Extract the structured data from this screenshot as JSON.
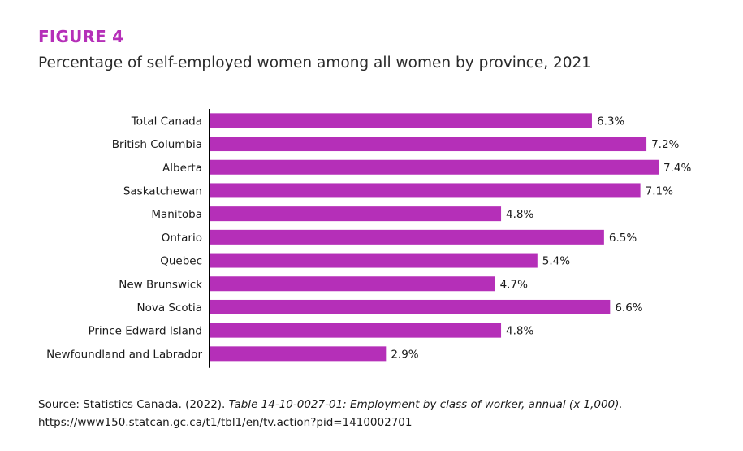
{
  "figure": {
    "label": "FIGURE 4",
    "title": "Percentage of self-employed women among all women by province, 2021"
  },
  "colors": {
    "bar": "#b52fb8",
    "figure_label": "#b52fb8",
    "text": "#1a1a1a",
    "axis": "#000000"
  },
  "chart_data": {
    "type": "bar",
    "orientation": "horizontal",
    "categories": [
      "Total Canada",
      "British Columbia",
      "Alberta",
      "Saskatchewan",
      "Manitoba",
      "Ontario",
      "Quebec",
      "New Brunswick",
      "Nova Scotia",
      "Prince Edward Island",
      "Newfoundland and Labrador"
    ],
    "values": [
      6.3,
      7.2,
      7.4,
      7.1,
      4.8,
      6.5,
      5.4,
      4.7,
      6.6,
      4.8,
      2.9
    ],
    "value_labels": [
      "6.3%",
      "7.2%",
      "7.4%",
      "7.1%",
      "4.8%",
      "6.5%",
      "5.4%",
      "4.7%",
      "6.6%",
      "4.8%",
      "2.9%"
    ],
    "xlim": [
      0,
      7.4
    ],
    "grid": false,
    "legend": "none"
  },
  "source": {
    "prefix": "Source: Statistics Canada. (2022). ",
    "italic": "Table 14-10-0027-01: Employment by class of worker, annual (x 1,000).",
    "link": "https://www150.statcan.gc.ca/t1/tbl1/en/tv.action?pid=1410002701"
  }
}
